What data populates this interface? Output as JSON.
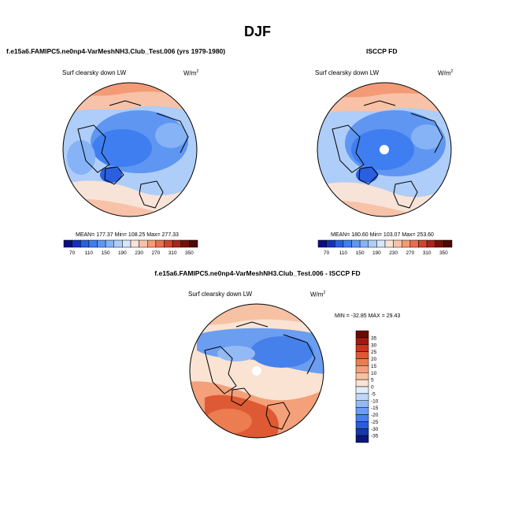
{
  "page": {
    "title": "DJF",
    "left_case": "f.e15a6.FAMIPC5.ne0np4-VarMeshNH3.Club_Test.006 (yrs 1979-1980)",
    "right_case": "ISCCP FD",
    "diff_case": "f.e15a6.FAMIPC5.ne0np4-VarMeshNH3.Club_Test.006 - ISCCP FD"
  },
  "panels": {
    "model": {
      "var_label": "Surf clearsky down LW",
      "units_base": "W/m",
      "units_exp": "2",
      "stats": "MEAN= 177.37  Min= 108.25  Max= 277.33"
    },
    "obs": {
      "var_label": "Surf clearsky down LW",
      "units_base": "W/m",
      "units_exp": "2",
      "stats": "MEAN= 180.60  Min= 103.07  Max= 253.60"
    },
    "diff": {
      "var_label": "Surf clearsky down LW",
      "units_base": "W/m",
      "units_exp": "2",
      "stats": "MIN = -32.85 MAX =  29.43"
    }
  },
  "chart_data": [
    {
      "type": "heatmap",
      "title": "Surf clearsky down LW",
      "projection": "north polar stereographic",
      "units": "W/m2",
      "mean": 177.37,
      "min": 108.25,
      "max": 277.33,
      "colorbar": {
        "orientation": "horizontal",
        "levels": [
          70,
          90,
          110,
          130,
          150,
          170,
          190,
          210,
          230,
          250,
          270,
          290,
          310,
          330,
          350
        ],
        "tick_labels": [
          "70",
          "110",
          "150",
          "190",
          "230",
          "270",
          "310",
          "350"
        ],
        "colors": [
          "#0b0f7e",
          "#1530b8",
          "#2a5fe0",
          "#3f7ef0",
          "#5e96f2",
          "#85b3f6",
          "#aecdf8",
          "#d6e6fb",
          "#f7e3d8",
          "#f8c2a8",
          "#f39a77",
          "#e7704f",
          "#cf4530",
          "#a7261b",
          "#731108",
          "#4d0904"
        ]
      }
    },
    {
      "type": "heatmap",
      "title": "Surf clearsky down LW",
      "projection": "north polar stereographic",
      "units": "W/m2",
      "mean": 180.6,
      "min": 103.07,
      "max": 253.6,
      "colorbar": {
        "orientation": "horizontal",
        "levels": [
          70,
          90,
          110,
          130,
          150,
          170,
          190,
          210,
          230,
          250,
          270,
          290,
          310,
          330,
          350
        ],
        "tick_labels": [
          "70",
          "110",
          "150",
          "190",
          "230",
          "270",
          "310",
          "350"
        ],
        "colors": [
          "#0b0f7e",
          "#1530b8",
          "#2a5fe0",
          "#3f7ef0",
          "#5e96f2",
          "#85b3f6",
          "#aecdf8",
          "#d6e6fb",
          "#f7e3d8",
          "#f8c2a8",
          "#f39a77",
          "#e7704f",
          "#cf4530",
          "#a7261b",
          "#731108",
          "#4d0904"
        ]
      }
    },
    {
      "type": "heatmap",
      "title": "Surf clearsky down LW",
      "projection": "north polar stereographic",
      "units": "W/m2",
      "min": -32.85,
      "max": 29.43,
      "colorbar": {
        "orientation": "vertical",
        "levels": [
          35,
          30,
          25,
          20,
          15,
          10,
          5,
          0,
          -5,
          -10,
          -15,
          -20,
          -25,
          -30,
          -35
        ],
        "tick_labels": [
          "35",
          "30",
          "25",
          "20",
          "15",
          "10",
          "5",
          "0",
          "-5",
          "-10",
          "-15",
          "-20",
          "-25",
          "-30",
          "-35"
        ],
        "colors": [
          "#6b0b06",
          "#a11a12",
          "#c9351f",
          "#de5a34",
          "#ec7d51",
          "#f4a07a",
          "#f7c2a4",
          "#fae3d3",
          "#e3ecfb",
          "#c1d7f8",
          "#93baf4",
          "#6b9ef0",
          "#4680ea",
          "#2a5ed8",
          "#1838a8",
          "#0b1878"
        ]
      }
    }
  ]
}
